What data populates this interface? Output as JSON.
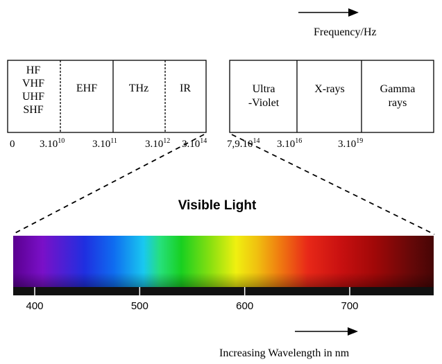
{
  "frequency_axis": {
    "label": "Frequency/Hz",
    "bands_left": [
      {
        "name": "band-radio",
        "lines": [
          "HF",
          "VHF",
          "UHF",
          "SHF"
        ]
      },
      {
        "name": "band-ehf",
        "lines": [
          "EHF"
        ]
      },
      {
        "name": "band-thz",
        "lines": [
          "THz"
        ]
      },
      {
        "name": "band-ir",
        "lines": [
          "IR"
        ]
      }
    ],
    "bands_right": [
      {
        "name": "band-ultraviolet",
        "lines": [
          "Ultra",
          "-Violet"
        ]
      },
      {
        "name": "band-xrays",
        "lines": [
          "X-rays"
        ]
      },
      {
        "name": "band-gamma",
        "lines": [
          "Gamma",
          "rays"
        ]
      }
    ],
    "tick_labels": [
      {
        "base": "0",
        "exp": ""
      },
      {
        "base": "3.10",
        "exp": "10"
      },
      {
        "base": "3.10",
        "exp": "11"
      },
      {
        "base": "3.10",
        "exp": "12"
      },
      {
        "base": "3.10",
        "exp": "14"
      },
      {
        "base": "7,9.10",
        "exp": "14"
      },
      {
        "base": "3.10",
        "exp": "16"
      },
      {
        "base": "3.10",
        "exp": "19"
      }
    ]
  },
  "visible_light": {
    "title": "Visible Light",
    "wavelength_ticks": [
      "400",
      "500",
      "600",
      "700"
    ],
    "wavelength_values": [
      400,
      500,
      600,
      700
    ],
    "axis_caption": "Increasing Wavelength in nm"
  },
  "colors": {
    "spectrum": [
      "#5a0090",
      "#7a10c8",
      "#1f2fe0",
      "#0f6df0",
      "#19c8f0",
      "#26e07a",
      "#18d020",
      "#8ae010",
      "#f0f010",
      "#f0c010",
      "#f08010",
      "#e82818",
      "#c81010",
      "#a00808",
      "#6a0808",
      "#460606"
    ],
    "spectrum_base": "#111111"
  }
}
